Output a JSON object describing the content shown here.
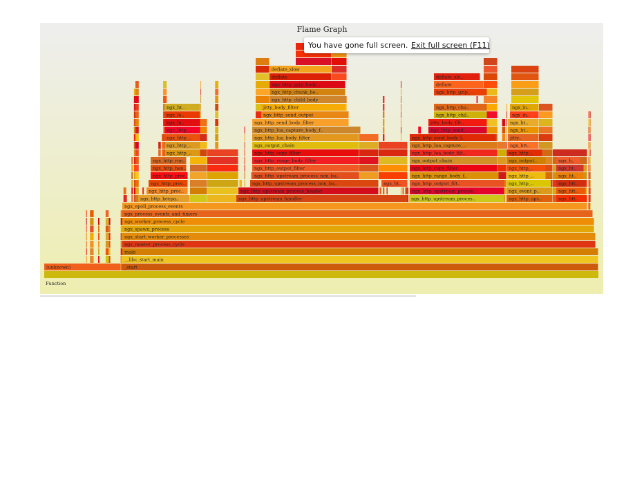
{
  "header": {
    "title": "Flame Graph"
  },
  "notification": {
    "message": "You have gone full screen.",
    "action": "Exit full screen (F11)"
  },
  "frames": [
    "(unknown)",
    "_start",
    "__libc_start_main",
    "main",
    "ngx_master_process_cycle",
    "ngx_start_worker_processes",
    "ngx_spawn_process",
    "ngx_worker_process_cycle",
    "ngx_process_events_and_timers",
    "ngx_epoll_process_events",
    "ngx_http_keepa..",
    "ngx_http_upstream_handler",
    "ngx_http_upstream_proces..",
    "ngx_http_ups..",
    "ngx_htt..",
    "ngx_http_proc..",
    "ngx_http_upstream_process_header",
    "ngx_http_upstream_proces..",
    "ngx_event_p..",
    "ngx_htt..",
    "ngx_http_proc..",
    "ngx_http_upstream_process_non_bu..",
    "ngx_ht..",
    "ngx_http_output_filt..",
    "ngx_http_..",
    "ngx_htt..",
    "ngx_http_proc..",
    "ngx_http_upstream_process_non_bu..",
    "ngx_http_range_body_f..",
    "ngx_http_..",
    "ngx_ht..",
    "ngx_http_han..",
    "ngx_http_output_filter",
    "ngx_http_copy_filter",
    "ngx_http_..",
    "ngx_ht..",
    "ngx_http_run..",
    "ngx_http_range_body_filter",
    "ngx_output_chain",
    "ngx_output..",
    "ngx_h..",
    "ngx_http_..",
    "ngx_http_copy_filter",
    "ngx_http_lua_body_filt..",
    "ngx_http_..",
    "ngx_http_..",
    "ngx_output_chain",
    "ngx_http_lua_capture_..",
    "ngx_htt..",
    "ngx_http_..",
    "ngx_http_lua_body_filter",
    "ngx_http_send_body_f..",
    "jitty..",
    "ngx_http_..",
    "ngx_http_lua_capture_body_f..",
    "ngx_http_send_..",
    "ngx_ht..",
    "ngx_lu..",
    "ngx_http_send_body_filter",
    "jitty_body_filt..",
    "ngx_ht..",
    "ngx_lu..",
    "ngx_http_send_output",
    "ngx_http_chil..",
    "ngx_in..",
    "ngx_ht..",
    "jitty_body_filter",
    "ngx_http_chu..",
    "ngx_in..",
    "ngx_http_child_body",
    "ngx_http_chunk_bo..",
    "ngx_http_gzip_..",
    "ngx_http_gzip_body_..",
    "deflate",
    "deflate",
    "deflate_slo..",
    "deflate_slow"
  ],
  "footer": {
    "label": "Function"
  }
}
